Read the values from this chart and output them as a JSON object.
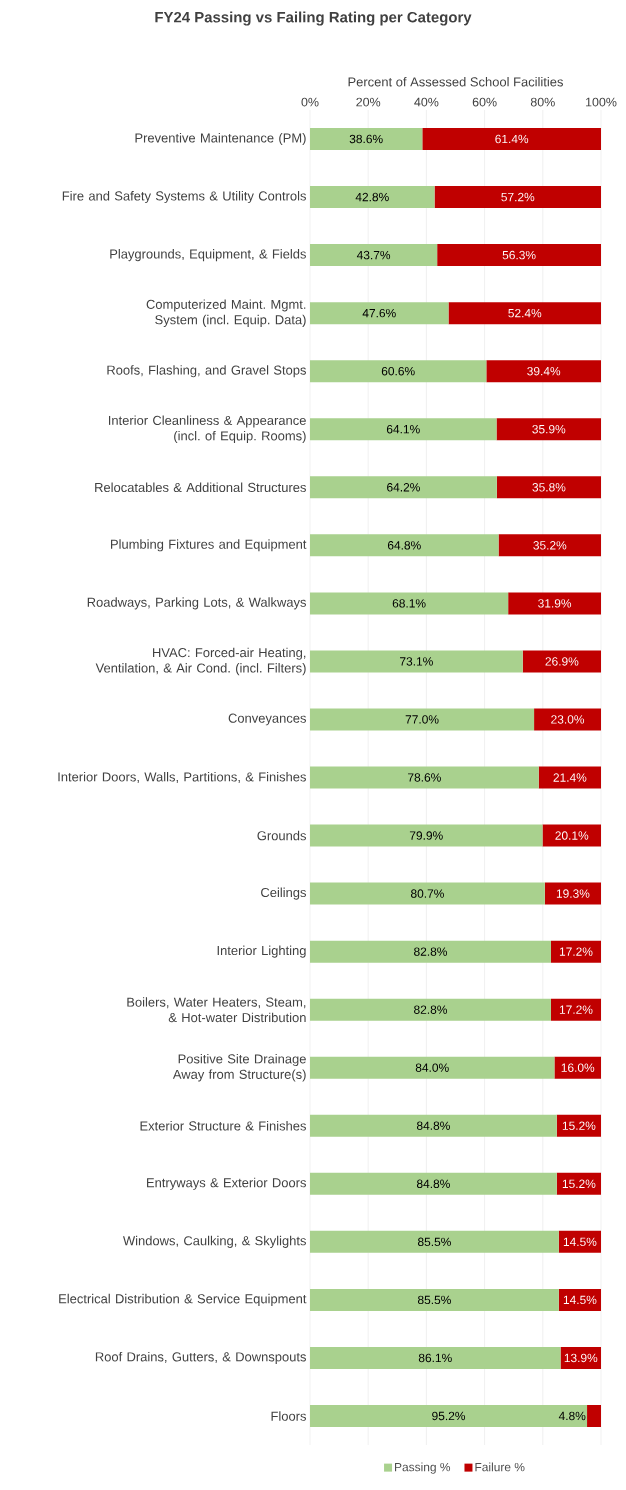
{
  "chart_data": {
    "type": "bar",
    "orientation": "horizontal",
    "stacked": true,
    "title": "FY24 Passing vs Failing Rating per Category",
    "xlabel": "Percent of Assessed School Facilities",
    "categories": [
      "Preventive Maintenance (PM)",
      "Fire and Safety Systems & Utility Controls",
      "Playgrounds, Equipment, & Fields",
      "Computerized Maint. Mgmt. System (incl. Equip. Data)",
      "Roofs, Flashing, and Gravel Stops",
      "Interior Cleanliness & Appearance (incl. of Equip. Rooms)",
      "Relocatables & Additional Structures",
      "Plumbing Fixtures and Equipment",
      "Roadways, Parking Lots, & Walkways",
      "HVAC: Forced-air Heating, Ventilation, & Air Cond. (incl. Filters)",
      "Conveyances",
      "Interior Doors, Walls, Partitions, & Finishes",
      "Grounds",
      "Ceilings",
      "Interior Lighting",
      "Boilers, Water Heaters, Steam, & Hot-water Distribution",
      "Positive Site Drainage Away from Structure(s)",
      "Exterior Structure & Finishes",
      "Entryways & Exterior Doors",
      "Windows, Caulking, & Skylights",
      "Electrical Distribution & Service Equipment",
      "Roof Drains, Gutters, & Downspouts",
      "Floors"
    ],
    "series": [
      {
        "name": "Passing %",
        "color": "#a9d18e",
        "values": [
          38.6,
          42.8,
          43.7,
          47.6,
          60.6,
          64.1,
          64.2,
          64.8,
          68.1,
          73.1,
          77.0,
          78.6,
          79.9,
          80.7,
          82.8,
          82.8,
          84.0,
          84.8,
          84.8,
          85.5,
          85.5,
          86.1,
          95.2
        ],
        "value_labels": [
          "38.6%",
          "42.8%",
          "43.7%",
          "47.6%",
          "60.6%",
          "64.1%",
          "64.2%",
          "64.8%",
          "68.1%",
          "73.1%",
          "77.0%",
          "78.6%",
          "79.9%",
          "80.7%",
          "82.8%",
          "82.8%",
          "84.0%",
          "84.8%",
          "84.8%",
          "85.5%",
          "85.5%",
          "86.1%",
          "95.2%"
        ]
      },
      {
        "name": "Failure %",
        "color": "#c00000",
        "values": [
          61.4,
          57.2,
          56.3,
          52.4,
          39.4,
          35.9,
          35.8,
          35.2,
          31.9,
          26.9,
          23.0,
          21.4,
          20.1,
          19.3,
          17.2,
          17.2,
          16.0,
          15.2,
          15.2,
          14.5,
          14.5,
          13.9,
          4.8
        ],
        "value_labels": [
          "61.4%",
          "57.2%",
          "56.3%",
          "52.4%",
          "39.4%",
          "35.9%",
          "35.8%",
          "35.2%",
          "31.9%",
          "26.9%",
          "23.0%",
          "21.4%",
          "20.1%",
          "19.3%",
          "17.2%",
          "17.2%",
          "16.0%",
          "15.2%",
          "15.2%",
          "14.5%",
          "14.5%",
          "13.9%",
          "4.8%"
        ]
      }
    ],
    "xlim": [
      0,
      100
    ],
    "xticks": [
      {
        "value": 0,
        "label": "0%"
      },
      {
        "value": 20,
        "label": "20%"
      },
      {
        "value": 40,
        "label": "40%"
      },
      {
        "value": 60,
        "label": "60%"
      },
      {
        "value": 80,
        "label": "80%"
      },
      {
        "value": 100,
        "label": "100%"
      }
    ],
    "grid": "x",
    "legend": "bottom"
  }
}
